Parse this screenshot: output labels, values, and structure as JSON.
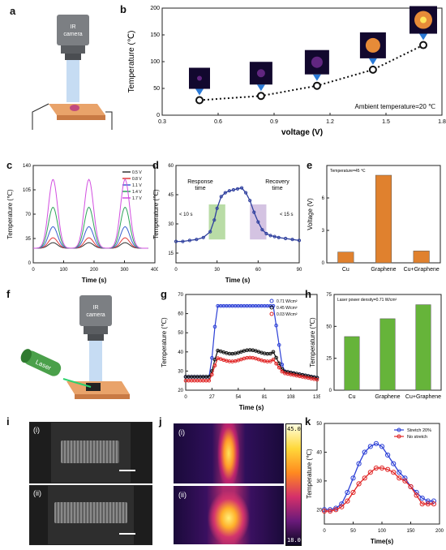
{
  "labels": {
    "a": "a",
    "b": "b",
    "c": "c",
    "d": "d",
    "e": "e",
    "f": "f",
    "g": "g",
    "h": "h",
    "i": "i",
    "j": "j",
    "k": "k"
  },
  "schematic_a": {
    "camera_text": "IR\ncamera"
  },
  "schematic_f": {
    "camera_text": "IR\ncamera",
    "laser_text": "Laser"
  },
  "photos_i": {
    "top": "(i)",
    "bottom": "(ii)"
  },
  "thermal_j": {
    "top": "(i)",
    "bottom": "(ii)",
    "scale_max": "45.0",
    "scale_min": "18.0"
  },
  "chart_data": [
    {
      "id": "b",
      "type": "scatter",
      "xlabel": "voltage (V)",
      "ylabel": "Temperature (℃)",
      "xlim": [
        0.3,
        1.8
      ],
      "ylim": [
        0,
        200
      ],
      "xticks": [
        "0.3",
        "0.6",
        "0.9",
        "1.2",
        "1.5",
        "1.8"
      ],
      "yticks": [
        "0",
        "50",
        "100",
        "150",
        "200"
      ],
      "x": [
        0.5,
        0.83,
        1.13,
        1.43,
        1.7
      ],
      "y": [
        28,
        36,
        55,
        85,
        131
      ],
      "annotation": "Ambient temperature=20 ℃",
      "fit": "dotted"
    },
    {
      "id": "c",
      "type": "line",
      "xlabel": "Time (s)",
      "ylabel": "Temperature (℃)",
      "xlim": [
        0,
        400
      ],
      "ylim": [
        0,
        140
      ],
      "xticks": [
        "0",
        "100",
        "200",
        "300",
        "400"
      ],
      "yticks": [
        "0",
        "35",
        "70",
        "105",
        "140"
      ],
      "legend_position": "top-right",
      "series": [
        {
          "name": "0.5 V",
          "color": "#333333",
          "peak": 29
        },
        {
          "name": "0.8 V",
          "color": "#e03c3c",
          "peak": 36
        },
        {
          "name": "1.1 V",
          "color": "#3a5fd0",
          "peak": 52
        },
        {
          "name": "1.4 V",
          "color": "#2fa45a",
          "peak": 80
        },
        {
          "name": "1.7 V",
          "color": "#d24fe0",
          "peak": 120
        }
      ],
      "baseline": 21,
      "peak_times": [
        65,
        183,
        302
      ]
    },
    {
      "id": "d",
      "type": "line",
      "xlabel": "Time (s)",
      "ylabel": "Temperature (℃)",
      "xlim": [
        0,
        90
      ],
      "ylim": [
        10,
        60
      ],
      "xticks": [
        "0",
        "30",
        "60",
        "90"
      ],
      "yticks": [
        "15",
        "30",
        "45",
        "60"
      ],
      "x": [
        0,
        5,
        10,
        15,
        20,
        25,
        28,
        30,
        33,
        36,
        39,
        42,
        45,
        48,
        51,
        54,
        57,
        60,
        63,
        66,
        69,
        72,
        75,
        80,
        85,
        90
      ],
      "y": [
        21,
        21,
        21.5,
        22,
        23,
        26,
        32,
        38,
        44,
        46,
        47,
        47.5,
        48,
        48.5,
        46,
        42,
        36,
        31,
        27,
        25,
        24,
        23.5,
        23,
        22.5,
        22,
        21.5
      ],
      "annotations": [
        "Response\ntime",
        "Recovery\ntime",
        "< 10 s",
        "< 15 s"
      ],
      "response_window": [
        24,
        36
      ],
      "recovery_window": [
        54,
        66
      ],
      "colors": {
        "line": "#2e3f9e",
        "response": "#8bc46b",
        "recovery": "#b79bcf"
      }
    },
    {
      "id": "e",
      "type": "bar",
      "ylabel": "Voltage (V)",
      "categories": [
        "Cu",
        "Graphene",
        "Cu+Graphene"
      ],
      "values": [
        1.0,
        8.1,
        1.1
      ],
      "ylim": [
        0,
        9
      ],
      "yticks": [
        "0",
        "3",
        "6"
      ],
      "annotation": "Temperature=45 ℃",
      "color": "#e0812e"
    },
    {
      "id": "g",
      "type": "line",
      "xlabel": "Time (s)",
      "ylabel": "Temperature (℃)",
      "xlim": [
        0,
        135
      ],
      "ylim": [
        20,
        70
      ],
      "xticks": [
        "0",
        "27",
        "54",
        "81",
        "108",
        "135"
      ],
      "yticks": [
        "20",
        "30",
        "40",
        "50",
        "60",
        "70"
      ],
      "legend_position": "top-right",
      "series": [
        {
          "name": "0.71 W/cm²",
          "color": "#2b3fd6",
          "on": 64,
          "off": 26
        },
        {
          "name": "0.45 W/cm²",
          "color": "#111111",
          "on": 40,
          "off": 26
        },
        {
          "name": "0.03 W/cm²",
          "color": "#e02525",
          "on": 36,
          "off": 25
        }
      ]
    },
    {
      "id": "h",
      "type": "bar",
      "ylabel": "Temperature (℃)",
      "categories": [
        "Cu",
        "Graphene",
        "Cu+Graphene"
      ],
      "values": [
        42,
        56,
        67
      ],
      "ylim": [
        0,
        75
      ],
      "yticks": [
        "0",
        "25",
        "50",
        "75"
      ],
      "annotation": "Laser power density=0.71 W/cm²",
      "color": "#66b43a"
    },
    {
      "id": "k",
      "type": "line",
      "xlabel": "Time(s)",
      "ylabel": "Temperature (℃)",
      "xlim": [
        0,
        200
      ],
      "ylim": [
        15,
        50
      ],
      "xticks": [
        "0",
        "50",
        "100",
        "150",
        "200"
      ],
      "yticks": [
        "20",
        "30",
        "40",
        "50"
      ],
      "legend_position": "top-right",
      "series": [
        {
          "name": "Stretch 20%",
          "color": "#2b3fd6",
          "x": [
            0,
            10,
            20,
            30,
            40,
            50,
            60,
            70,
            80,
            90,
            100,
            110,
            120,
            130,
            140,
            150,
            160,
            170,
            180,
            190
          ],
          "y": [
            20,
            20,
            20.5,
            22,
            26,
            31,
            36,
            40,
            42,
            43,
            42,
            39,
            36,
            33,
            31,
            28,
            26,
            24,
            23,
            23
          ]
        },
        {
          "name": "No stretch",
          "color": "#e02525",
          "x": [
            0,
            10,
            20,
            30,
            40,
            50,
            60,
            70,
            80,
            90,
            100,
            110,
            120,
            130,
            140,
            150,
            160,
            170,
            180,
            190
          ],
          "y": [
            19.5,
            19.5,
            20,
            21,
            23,
            26,
            29,
            31,
            33,
            34.5,
            34.5,
            34,
            33,
            31,
            30,
            28,
            25,
            22,
            22,
            22
          ]
        }
      ]
    }
  ]
}
